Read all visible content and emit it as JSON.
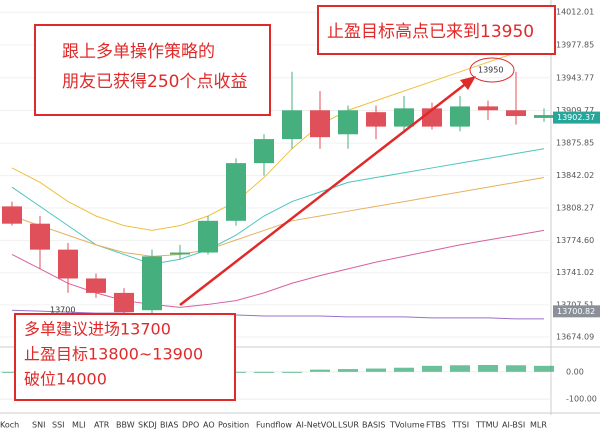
{
  "chart_data": {
    "type": "candlestick",
    "categories": [
      null,
      null,
      null,
      null,
      null,
      null,
      null,
      null,
      null,
      null,
      null,
      null,
      null,
      null,
      null,
      null,
      null,
      null,
      null,
      null
    ],
    "open": [
      13810,
      13792,
      13765,
      13735,
      13720,
      13702,
      13760,
      13762,
      13795,
      13855,
      13880,
      13910,
      13885,
      13908,
      13893,
      13912,
      13893,
      13914,
      13910,
      13902
    ],
    "high": [
      13815,
      13800,
      13772,
      13740,
      13725,
      13765,
      13770,
      13800,
      13860,
      13885,
      13950,
      13930,
      13915,
      13915,
      13925,
      13918,
      13925,
      13920,
      13950,
      13912
    ],
    "low": [
      13790,
      13745,
      13720,
      13715,
      13695,
      13698,
      13755,
      13760,
      13790,
      13842,
      13870,
      13870,
      13870,
      13880,
      13888,
      13890,
      13888,
      13900,
      13895,
      13898
    ],
    "close": [
      13792,
      13765,
      13735,
      13720,
      13700,
      13758,
      13762,
      13795,
      13855,
      13880,
      13910,
      13882,
      13910,
      13893,
      13912,
      13893,
      13914,
      13910,
      13904,
      13905
    ],
    "up_color": "#45b07e",
    "down_color": "#e0505a",
    "series": [
      {
        "color": "#f0c040",
        "values": [
          13850,
          13835,
          13815,
          13800,
          13790,
          13785,
          13790,
          13800,
          13815,
          13840,
          13870,
          13895,
          13910,
          13920,
          13930,
          13940,
          13950,
          13960,
          13970,
          13978
        ]
      },
      {
        "color": "#4dc4c0",
        "values": [
          13830,
          13810,
          13790,
          13770,
          13760,
          13750,
          13755,
          13765,
          13780,
          13800,
          13815,
          13825,
          13835,
          13840,
          13845,
          13850,
          13855,
          13860,
          13865,
          13870
        ]
      },
      {
        "color": "#e8b060",
        "values": [
          13800,
          13790,
          13780,
          13770,
          13762,
          13758,
          13760,
          13765,
          13775,
          13785,
          13795,
          13800,
          13805,
          13810,
          13815,
          13820,
          13825,
          13830,
          13835,
          13840
        ]
      },
      {
        "color": "#d860a0",
        "values": [
          13760,
          13745,
          13730,
          13720,
          13712,
          13708,
          13705,
          13708,
          13712,
          13720,
          13730,
          13738,
          13745,
          13752,
          13758,
          13764,
          13770,
          13775,
          13780,
          13785
        ]
      },
      {
        "color": "#9a70c8",
        "values": [
          13702,
          13701,
          13700,
          13699,
          13699,
          13698,
          13698,
          13697,
          13697,
          13696,
          13696,
          13696,
          13695,
          13695,
          13695,
          13694,
          13694,
          13694,
          13693,
          13693
        ]
      }
    ],
    "ylim": [
      13665.8,
      14024.7
    ],
    "yticks": [
      14012.01,
      13977.85,
      13943.77,
      13909.77,
      13875.85,
      13842.02,
      13808.27,
      {
        "value": 13774.6,
        "label": "13774.60"
      },
      13741.02,
      13707.51,
      13674.09
    ],
    "last_price": 13902.37,
    "reference_price": 13700.82,
    "lower_values": [
      -3,
      -3,
      -3,
      -3,
      -3,
      -3,
      -3,
      -3,
      -3,
      -3,
      -3,
      8,
      10,
      12,
      15,
      22,
      24,
      25,
      24,
      22
    ],
    "lower_color": "#45b07e",
    "lower_ylim": [
      -140,
      80
    ],
    "lower_yticks": [
      {
        "value": 0,
        "label": "0.00"
      },
      {
        "value": -100,
        "label": "-100.00"
      }
    ],
    "annotations": {
      "profit_note": [
        "跟上多单操作策略的",
        "朋友已获得250个点收益"
      ],
      "target_note": "止盈目标高点已来到13950",
      "entry_note": [
        "多单建议进场13700",
        "止盈目标13800~13900",
        "破位14000"
      ],
      "high_marker": "13950",
      "low_marker": "13700"
    },
    "indicator_tabs": [
      "Koch",
      "SNI",
      "SSI",
      "MLI",
      "ATR",
      "BBW",
      "SKDJ",
      "BIAS",
      "DPO",
      "AO",
      "Position",
      "Fundflow",
      "AI-NetVOL",
      "LSUR",
      "BASIS",
      "TVolume",
      "FTBS",
      "TTSI",
      "TTMU",
      "AI-BSI",
      "MLR"
    ]
  }
}
